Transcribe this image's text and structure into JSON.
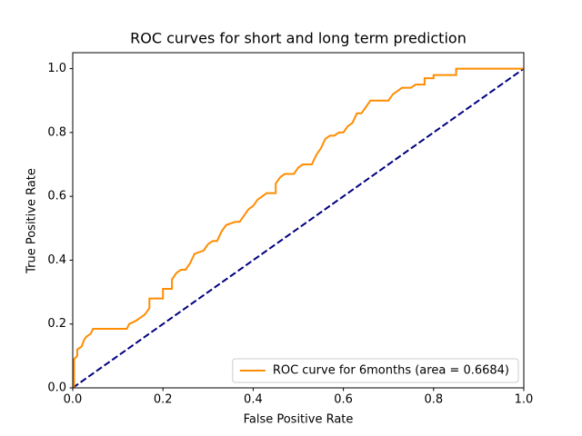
{
  "chart_data": {
    "type": "line",
    "title": "ROC curves for short and long term prediction",
    "xlabel": "False Positive Rate",
    "ylabel": "True Positive Rate",
    "xlim": [
      0,
      1
    ],
    "ylim": [
      0,
      1.05
    ],
    "xticks": [
      {
        "value": 0,
        "label": "0.0"
      },
      0.2,
      0.4,
      0.6,
      0.8,
      {
        "value": 1,
        "label": "1.0"
      }
    ],
    "yticks": [
      {
        "value": 0,
        "label": "0.0"
      },
      0.2,
      0.4,
      0.6,
      0.8,
      {
        "value": 1,
        "label": "1.0"
      }
    ],
    "grid": false,
    "legend": "lower right",
    "series": [
      {
        "name": "ROC curve for 6months (area = 0.6684)",
        "color": "#ff8c00",
        "linestyle": "solid",
        "x": [
          0.003,
          0.003,
          0.01,
          0.01,
          0.02,
          0.025,
          0.03,
          0.04,
          0.045,
          0.12,
          0.125,
          0.14,
          0.15,
          0.16,
          0.17,
          0.17,
          0.2,
          0.2,
          0.22,
          0.22,
          0.23,
          0.24,
          0.25,
          0.26,
          0.27,
          0.29,
          0.3,
          0.31,
          0.32,
          0.33,
          0.34,
          0.36,
          0.37,
          0.38,
          0.39,
          0.4,
          0.41,
          0.42,
          0.43,
          0.45,
          0.45,
          0.46,
          0.47,
          0.49,
          0.5,
          0.51,
          0.53,
          0.54,
          0.55,
          0.56,
          0.57,
          0.58,
          0.59,
          0.6,
          0.61,
          0.62,
          0.63,
          0.64,
          0.65,
          0.66,
          0.7,
          0.71,
          0.72,
          0.73,
          0.75,
          0.76,
          0.78,
          0.78,
          0.8,
          0.8,
          0.85,
          0.85,
          1.0
        ],
        "values": [
          0,
          0.09,
          0.1,
          0.12,
          0.13,
          0.15,
          0.16,
          0.17,
          0.185,
          0.185,
          0.2,
          0.21,
          0.22,
          0.23,
          0.25,
          0.28,
          0.28,
          0.31,
          0.31,
          0.34,
          0.36,
          0.37,
          0.37,
          0.39,
          0.42,
          0.43,
          0.45,
          0.46,
          0.46,
          0.49,
          0.51,
          0.52,
          0.52,
          0.54,
          0.56,
          0.57,
          0.59,
          0.6,
          0.61,
          0.61,
          0.64,
          0.66,
          0.67,
          0.67,
          0.69,
          0.7,
          0.7,
          0.73,
          0.75,
          0.78,
          0.79,
          0.79,
          0.8,
          0.8,
          0.82,
          0.83,
          0.86,
          0.86,
          0.88,
          0.9,
          0.9,
          0.92,
          0.93,
          0.94,
          0.94,
          0.95,
          0.95,
          0.97,
          0.97,
          0.98,
          0.98,
          1.0,
          1.0
        ]
      },
      {
        "color": "#000080",
        "linestyle": "dashed",
        "x": [
          0,
          1
        ],
        "values": [
          0,
          1
        ]
      }
    ]
  }
}
